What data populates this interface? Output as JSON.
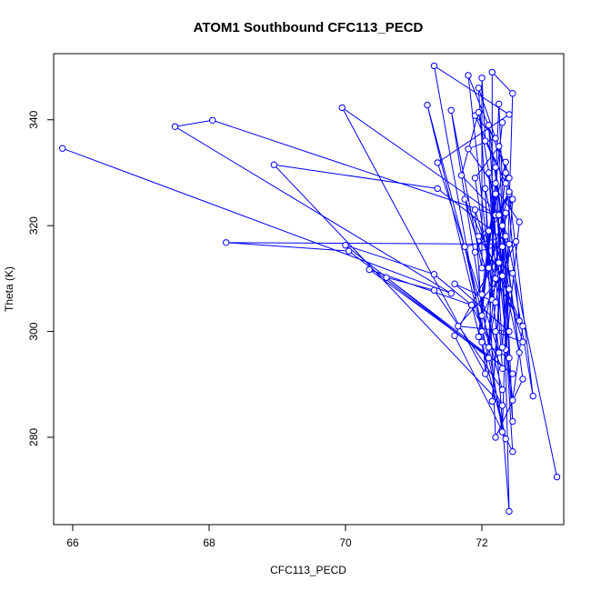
{
  "chart_data": {
    "type": "line",
    "title": "ATOM1 Southbound CFC113_PECD",
    "xlabel": "CFC113_PECD",
    "ylabel": "Theta (K)",
    "xlim": [
      65.72,
      73.2
    ],
    "ylim": [
      263.5,
      352.5
    ],
    "x_ticks": [
      66,
      68,
      70,
      72
    ],
    "y_ticks": [
      280,
      300,
      320,
      340
    ],
    "grid": false,
    "legend": "none",
    "line_color": "#0000ff",
    "marker": "open-circle",
    "points": [
      {
        "x": 65.85,
        "y": 334.6
      },
      {
        "x": 71.55,
        "y": 307.2
      },
      {
        "x": 67.5,
        "y": 338.7
      },
      {
        "x": 68.05,
        "y": 339.9
      },
      {
        "x": 72.2,
        "y": 322.0
      },
      {
        "x": 69.95,
        "y": 342.3
      },
      {
        "x": 72.3,
        "y": 286.0
      },
      {
        "x": 68.95,
        "y": 331.5
      },
      {
        "x": 71.35,
        "y": 327.0
      },
      {
        "x": 72.4,
        "y": 316.5
      },
      {
        "x": 68.25,
        "y": 316.8
      },
      {
        "x": 70.05,
        "y": 315.2
      },
      {
        "x": 72.1,
        "y": 295.0
      },
      {
        "x": 70.0,
        "y": 316.3
      },
      {
        "x": 71.3,
        "y": 310.8
      },
      {
        "x": 71.85,
        "y": 305.0
      },
      {
        "x": 70.35,
        "y": 311.7
      },
      {
        "x": 72.45,
        "y": 292.0
      },
      {
        "x": 70.6,
        "y": 310.2
      },
      {
        "x": 71.3,
        "y": 307.8
      },
      {
        "x": 72.3,
        "y": 289.0
      },
      {
        "x": 71.2,
        "y": 342.8
      },
      {
        "x": 72.0,
        "y": 300.0
      },
      {
        "x": 71.3,
        "y": 350.2
      },
      {
        "x": 72.4,
        "y": 341.0
      },
      {
        "x": 71.35,
        "y": 331.9
      },
      {
        "x": 72.25,
        "y": 296.0
      },
      {
        "x": 71.8,
        "y": 348.4
      },
      {
        "x": 72.4,
        "y": 329.0
      },
      {
        "x": 71.95,
        "y": 346.0
      },
      {
        "x": 72.15,
        "y": 306.0
      },
      {
        "x": 72.15,
        "y": 349.0
      },
      {
        "x": 72.45,
        "y": 345.0
      },
      {
        "x": 72.3,
        "y": 281.0
      },
      {
        "x": 71.55,
        "y": 341.8
      },
      {
        "x": 72.0,
        "y": 312.0
      },
      {
        "x": 72.0,
        "y": 347.9
      },
      {
        "x": 72.05,
        "y": 336.0
      },
      {
        "x": 72.35,
        "y": 328.0
      },
      {
        "x": 71.9,
        "y": 340.8
      },
      {
        "x": 72.2,
        "y": 336.5
      },
      {
        "x": 71.8,
        "y": 334.5
      },
      {
        "x": 72.55,
        "y": 320.7
      },
      {
        "x": 72.35,
        "y": 296.6
      },
      {
        "x": 72.4,
        "y": 308.0
      },
      {
        "x": 71.95,
        "y": 341.4
      },
      {
        "x": 71.7,
        "y": 329.5
      },
      {
        "x": 72.25,
        "y": 322.0
      },
      {
        "x": 72.4,
        "y": 326.0
      },
      {
        "x": 71.9,
        "y": 315.0
      },
      {
        "x": 72.5,
        "y": 317.0
      },
      {
        "x": 72.0,
        "y": 303.0
      },
      {
        "x": 72.3,
        "y": 339.5
      },
      {
        "x": 71.95,
        "y": 299.0
      },
      {
        "x": 72.2,
        "y": 326.0
      },
      {
        "x": 72.45,
        "y": 283.0
      },
      {
        "x": 72.25,
        "y": 343.0
      },
      {
        "x": 72.1,
        "y": 297.0
      },
      {
        "x": 72.35,
        "y": 330.0
      },
      {
        "x": 72.55,
        "y": 302.0
      },
      {
        "x": 72.2,
        "y": 310.0
      },
      {
        "x": 71.9,
        "y": 323.0
      },
      {
        "x": 72.05,
        "y": 292.0
      },
      {
        "x": 72.35,
        "y": 318.0
      },
      {
        "x": 71.75,
        "y": 316.0
      },
      {
        "x": 72.35,
        "y": 279.7
      },
      {
        "x": 71.85,
        "y": 305.0
      },
      {
        "x": 72.3,
        "y": 293.0
      },
      {
        "x": 72.1,
        "y": 330.0
      },
      {
        "x": 72.45,
        "y": 287.0
      },
      {
        "x": 72.6,
        "y": 301.0
      },
      {
        "x": 71.75,
        "y": 325.0
      },
      {
        "x": 72.2,
        "y": 305.5
      },
      {
        "x": 71.6,
        "y": 309.0
      },
      {
        "x": 72.4,
        "y": 300.0
      },
      {
        "x": 71.65,
        "y": 301.0
      },
      {
        "x": 72.3,
        "y": 310.5
      },
      {
        "x": 71.95,
        "y": 318.0
      },
      {
        "x": 72.35,
        "y": 322.4
      },
      {
        "x": 72.15,
        "y": 286.8
      },
      {
        "x": 72.3,
        "y": 316.0
      },
      {
        "x": 71.6,
        "y": 299.2
      },
      {
        "x": 72.45,
        "y": 277.3
      },
      {
        "x": 72.2,
        "y": 331.0
      },
      {
        "x": 72.55,
        "y": 296.0
      },
      {
        "x": 72.05,
        "y": 327.0
      },
      {
        "x": 72.2,
        "y": 280.0
      },
      {
        "x": 72.6,
        "y": 291.0
      },
      {
        "x": 72.1,
        "y": 339.0
      },
      {
        "x": 72.3,
        "y": 297.0
      },
      {
        "x": 72.45,
        "y": 325.0
      },
      {
        "x": 72.1,
        "y": 312.0
      },
      {
        "x": 71.9,
        "y": 329.0
      },
      {
        "x": 72.25,
        "y": 335.0
      },
      {
        "x": 72.4,
        "y": 295.0
      },
      {
        "x": 72.0,
        "y": 298.0
      },
      {
        "x": 72.3,
        "y": 320.0
      },
      {
        "x": 72.4,
        "y": 266.0
      },
      {
        "x": 72.2,
        "y": 300.0
      },
      {
        "x": 72.6,
        "y": 298.0
      },
      {
        "x": 72.25,
        "y": 313.0
      },
      {
        "x": 72.45,
        "y": 311.0
      },
      {
        "x": 72.75,
        "y": 287.8
      },
      {
        "x": 72.35,
        "y": 332.0
      },
      {
        "x": 72.1,
        "y": 319.0
      },
      {
        "x": 72.4,
        "y": 326.4
      },
      {
        "x": 72.0,
        "y": 307.0
      },
      {
        "x": 72.2,
        "y": 328.0
      },
      {
        "x": 73.1,
        "y": 272.5
      }
    ]
  }
}
